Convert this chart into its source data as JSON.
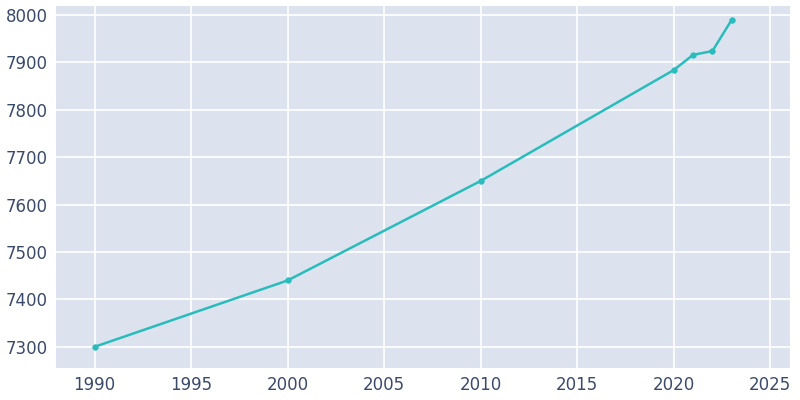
{
  "years": [
    1990,
    2000,
    2010,
    2020,
    2021,
    2022,
    2023
  ],
  "population": [
    7300,
    7440,
    7650,
    7884,
    7916,
    7924,
    7990
  ],
  "line_color": "#2abcbc",
  "marker_color": "#2abcbc",
  "plot_background_color": "#dce3ef",
  "fig_background_color": "#ffffff",
  "grid_color": "#ffffff",
  "xlabel": "",
  "ylabel": "",
  "xlim": [
    1988,
    2026
  ],
  "ylim": [
    7255,
    8020
  ],
  "yticks": [
    7300,
    7400,
    7500,
    7600,
    7700,
    7800,
    7900,
    8000
  ],
  "xticks": [
    1990,
    1995,
    2000,
    2005,
    2010,
    2015,
    2020,
    2025
  ],
  "tick_label_color": "#3a4a6b",
  "tick_label_size": 12,
  "linewidth": 1.8,
  "marker_size": 4
}
